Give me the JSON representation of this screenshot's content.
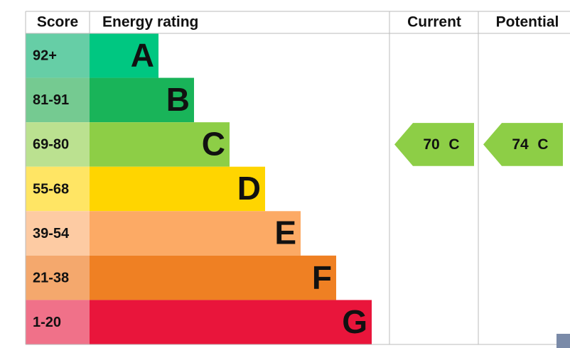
{
  "header": {
    "score": "Score",
    "rating": "Energy rating",
    "current": "Current",
    "potential": "Potential"
  },
  "bands": [
    {
      "range": "92+",
      "letter": "A",
      "color": "#00c781",
      "light": "#66cea6"
    },
    {
      "range": "81-91",
      "letter": "B",
      "color": "#19b459",
      "light": "#75ca91"
    },
    {
      "range": "69-80",
      "letter": "C",
      "color": "#8dce46",
      "light": "#bbe190"
    },
    {
      "range": "55-68",
      "letter": "D",
      "color": "#ffd500",
      "light": "#ffe564"
    },
    {
      "range": "39-54",
      "letter": "E",
      "color": "#fcaa65",
      "light": "#fdcba3"
    },
    {
      "range": "21-38",
      "letter": "F",
      "color": "#ef8023",
      "light": "#f4a86d"
    },
    {
      "range": "1-20",
      "letter": "G",
      "color": "#e9153b",
      "light": "#f07189"
    }
  ],
  "current": {
    "score": 70,
    "rating": "C"
  },
  "potential": {
    "score": 74,
    "rating": "C"
  }
}
